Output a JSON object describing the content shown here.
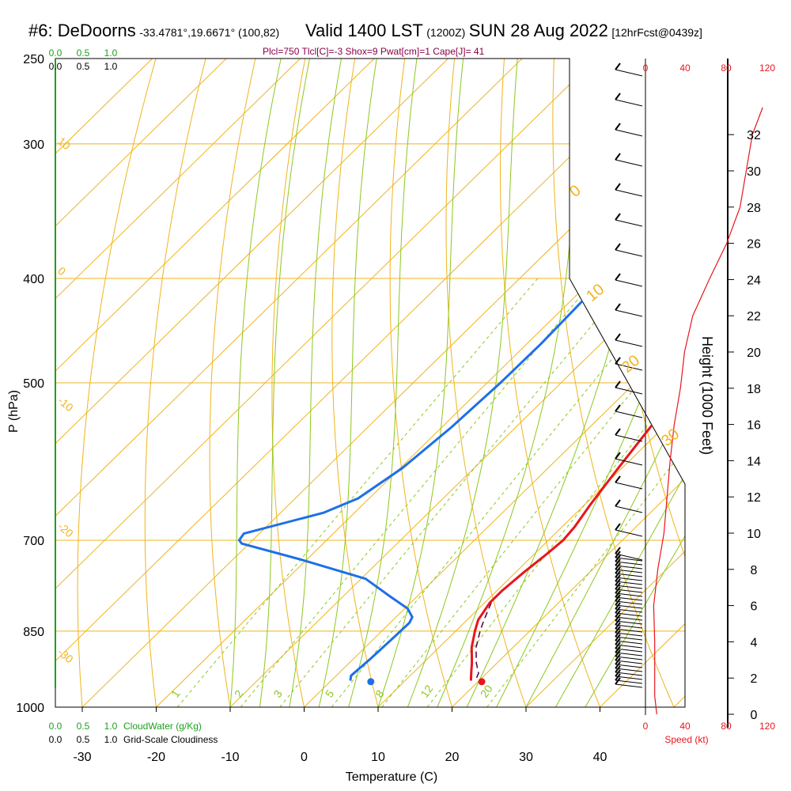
{
  "header": {
    "station": "#6: DeDoorns",
    "coords": "-33.4781°,19.6671° (100,82)",
    "valid": "Valid 1400 LST",
    "utc": "(1200Z)",
    "date": "SUN 28 Aug 2022",
    "forecast": "[12hrFcst@0439z]"
  },
  "subtitle": "Plcl=750 Tlcl[C]=-3 Shox=9 Pwat[cm]=1 Cape[J]= 41",
  "colors": {
    "temperature": "#e8161d",
    "dewpoint": "#1e6fe8",
    "isotherm": "#f0b41c",
    "dry_adiabat": "#f0b41c",
    "moist_adiabat": "#8cc81e",
    "mixing_ratio": "#8cc81e",
    "cloud_water": "#1ea01e",
    "wind_speed": "#e8161d",
    "parcel": "#5a0a46"
  },
  "chart_data": {
    "type": "skewt",
    "xlabel": "Temperature (C)",
    "ylabel": "P (hPa)",
    "ylabel_right": "Height (1000 Feet)",
    "x_ticks": [
      "-30",
      "-20",
      "-10",
      "0",
      "10",
      "20",
      "30",
      "40"
    ],
    "pressure_ticks": [
      "250",
      "300",
      "400",
      "500",
      "700",
      "850",
      "1000"
    ],
    "height_ticks": [
      "0",
      "2",
      "4",
      "6",
      "8",
      "10",
      "12",
      "14",
      "16",
      "18",
      "20",
      "22",
      "24",
      "26",
      "28",
      "30",
      "32"
    ],
    "speed_ticks": [
      "0",
      "40",
      "80",
      "120"
    ],
    "speed_label": "Speed (kt)",
    "cloud_scale_top": [
      "0.0",
      "0.5",
      "1.0"
    ],
    "cloud_scale_labels": [
      "0.0",
      "0.5",
      "1.0"
    ],
    "cloudwater_label": "CloudWater (g/Kg)",
    "cloudiness_label": "Grid-Scale Cloudiness",
    "mixing_ratio_labels": [
      "1",
      "2",
      "3",
      "5",
      "8",
      "12",
      "20"
    ],
    "isotherm_labels": [
      "10",
      "0",
      "-10",
      "-20",
      "-30"
    ],
    "dry_adiabat_labels": [
      "0",
      "10",
      "20",
      "30"
    ],
    "temperature_profile": [
      [
        250,
        2.0
      ],
      [
        260,
        2.1
      ],
      [
        280,
        2.6
      ],
      [
        300,
        3.2
      ],
      [
        320,
        3.6
      ],
      [
        340,
        3.9
      ],
      [
        360,
        4.2
      ],
      [
        380,
        4.5
      ],
      [
        400,
        4.8
      ],
      [
        430,
        5.4
      ],
      [
        470,
        6.3
      ],
      [
        500,
        7.0
      ],
      [
        550,
        8.2
      ],
      [
        600,
        9.5
      ],
      [
        650,
        10.8
      ],
      [
        680,
        11.7
      ],
      [
        700,
        12.0
      ],
      [
        720,
        11.7
      ],
      [
        750,
        11.1
      ],
      [
        780,
        10.7
      ],
      [
        800,
        10.7
      ],
      [
        830,
        11.5
      ],
      [
        850,
        12.6
      ],
      [
        880,
        14.4
      ],
      [
        910,
        16.6
      ],
      [
        930,
        17.9
      ],
      [
        945,
        18.9
      ]
    ],
    "dewpoint_profile": [
      [
        255,
        -19.0
      ],
      [
        270,
        -19.6
      ],
      [
        290,
        -20.8
      ],
      [
        310,
        -22.3
      ],
      [
        325,
        -23.2
      ],
      [
        335,
        -23.1
      ],
      [
        360,
        -21.5
      ],
      [
        390,
        -19.7
      ],
      [
        420,
        -18.4
      ],
      [
        460,
        -18.1
      ],
      [
        500,
        -18.2
      ],
      [
        550,
        -18.7
      ],
      [
        600,
        -19.7
      ],
      [
        640,
        -21.5
      ],
      [
        660,
        -24.2
      ],
      [
        690,
        -32.1
      ],
      [
        700,
        -31.8
      ],
      [
        705,
        -31.0
      ],
      [
        730,
        -20.6
      ],
      [
        760,
        -9.4
      ],
      [
        790,
        -3.5
      ],
      [
        810,
        0.4
      ],
      [
        825,
        2.2
      ],
      [
        835,
        2.6
      ],
      [
        860,
        2.5
      ],
      [
        900,
        2.3
      ],
      [
        935,
        2.0
      ],
      [
        945,
        2.6
      ]
    ],
    "parcel_profile": [
      [
        800,
        10.9
      ],
      [
        830,
        12.3
      ],
      [
        850,
        13.3
      ],
      [
        880,
        15.0
      ],
      [
        910,
        17.2
      ],
      [
        930,
        18.9
      ],
      [
        945,
        19.5
      ]
    ],
    "surface_temperature": [
      947,
      20.5
    ],
    "surface_dewpoint": [
      947,
      5.5
    ],
    "wind_speed_profile": [
      [
        0,
        11
      ],
      [
        1,
        9
      ],
      [
        2,
        9
      ],
      [
        4,
        9
      ],
      [
        6,
        8
      ],
      [
        8,
        12
      ],
      [
        10,
        18
      ],
      [
        12,
        21
      ],
      [
        14,
        24
      ],
      [
        16,
        28
      ],
      [
        18,
        34
      ],
      [
        20,
        38
      ],
      [
        22,
        46
      ],
      [
        24,
        62
      ],
      [
        26,
        79
      ],
      [
        28,
        92
      ],
      [
        30,
        98
      ],
      [
        32,
        104
      ],
      [
        33.5,
        114
      ]
    ]
  }
}
